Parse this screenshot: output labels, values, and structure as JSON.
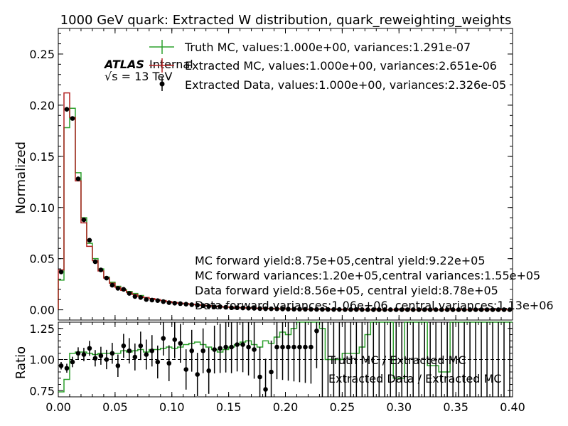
{
  "chart_data": {
    "type": "step-histogram",
    "title": "1000 GeV quark: Extracted W distribution, quark_reweighting_weights",
    "atlas_label": "ATLAS",
    "internal_label": "Internal",
    "energy_label": "√s =  13 TeV",
    "xlabel": "",
    "ylabel_main": "Normalized",
    "ylabel_ratio": "Ratio",
    "xlim": [
      0.0,
      0.4
    ],
    "ylim_main": [
      -0.01,
      0.275
    ],
    "ylim_ratio": [
      0.7,
      1.3
    ],
    "x_ticks": [
      "0.00",
      "0.05",
      "0.10",
      "0.15",
      "0.20",
      "0.25",
      "0.30",
      "0.35",
      "0.40"
    ],
    "y_ticks_main": [
      "0.00",
      "0.05",
      "0.10",
      "0.15",
      "0.20",
      "0.25"
    ],
    "y_ticks_ratio": [
      "0.75",
      "1.00",
      "1.25"
    ],
    "legend": {
      "truth_mc": "Truth MC, values:1.000e+00, variances:1.291e-07",
      "extracted_mc": "Extracted MC, values:1.000e+00, variances:2.651e-06",
      "extracted_data": "Extracted Data, values:1.000e+00, variances:2.326e-05"
    },
    "annotations": [
      "MC forward yield:8.75e+05,central yield:9.22e+05",
      "MC forward variances:1.20e+05,central variances:1.55e+05",
      "Data forward yield:8.56e+05, central yield:8.78e+05",
      "Data forward variances:1.06e+06, central variances:1.13e+06"
    ],
    "ratio_legend": {
      "truth": "Truth MC / Extracted MC",
      "data": "Extracted Data / Extracted MC"
    },
    "bin_edges_start": 0.0,
    "bin_width": 0.005,
    "series": [
      {
        "name": "Truth MC",
        "color": "#2ca02c",
        "values": [
          0.029,
          0.178,
          0.197,
          0.134,
          0.09,
          0.065,
          0.05,
          0.04,
          0.032,
          0.027,
          0.023,
          0.02,
          0.018,
          0.016,
          0.014,
          0.012,
          0.011,
          0.01,
          0.009,
          0.008,
          0.007,
          0.0065,
          0.006,
          0.0055,
          0.005,
          0.0045,
          0.004,
          0.0035,
          0.003,
          0.0028,
          0.0025,
          0.0022,
          0.002,
          0.0018,
          0.0016,
          0.0014,
          0.0012,
          0.0011,
          0.001,
          0.0009,
          0.0008,
          0.0007,
          0.0006,
          0.0005,
          0.0005,
          0.0004,
          0.0004,
          0.0003,
          0.0003,
          0.0003,
          0.0002,
          0.0002,
          0.0002,
          0.0002,
          0.0001,
          0.0001,
          0.0001,
          0.0001,
          0.0001,
          0.0001,
          0.0001,
          0.0001,
          0.0001,
          0.0001,
          0.0001,
          0.0001,
          0.0001,
          0.0001,
          0.0001,
          0.0001,
          0.0001,
          0.0001,
          0.0001,
          0.0001,
          0.0001,
          0.0001,
          0.0001,
          0.0001,
          0.0001,
          0.0001
        ]
      },
      {
        "name": "Extracted MC",
        "color": "#b22222",
        "values": [
          0.039,
          0.212,
          0.188,
          0.126,
          0.085,
          0.062,
          0.048,
          0.038,
          0.031,
          0.026,
          0.022,
          0.019,
          0.017,
          0.015,
          0.013,
          0.012,
          0.011,
          0.01,
          0.009,
          0.008,
          0.007,
          0.0065,
          0.006,
          0.0055,
          0.005,
          0.0045,
          0.004,
          0.0035,
          0.003,
          0.0028,
          0.0025,
          0.0022,
          0.002,
          0.0018,
          0.0016,
          0.0014,
          0.0012,
          0.0011,
          0.001,
          0.0009,
          0.0008,
          0.0007,
          0.0006,
          0.0005,
          0.0005,
          0.0004,
          0.0004,
          0.0003,
          0.0003,
          0.0003,
          0.0002,
          0.0002,
          0.0002,
          0.0002,
          0.0001,
          0.0001,
          0.0001,
          0.0001,
          0.0001,
          0.0001,
          0.0001,
          0.0001,
          0.0001,
          0.0001,
          0.0001,
          0.0001,
          0.0001,
          0.0001,
          0.0001,
          0.0001,
          0.0001,
          0.0001,
          0.0001,
          0.0001,
          0.0001,
          0.0001,
          0.0001,
          0.0001,
          0.0001,
          0.0001
        ]
      },
      {
        "name": "Extracted Data",
        "color": "#000000",
        "values": [
          0.037,
          0.196,
          0.187,
          0.128,
          0.088,
          0.068,
          0.047,
          0.039,
          0.031,
          0.024,
          0.021,
          0.02,
          0.016,
          0.013,
          0.012,
          0.01,
          0.0095,
          0.009,
          0.008,
          0.007,
          0.0065,
          0.006,
          0.0055,
          0.005,
          0.0045,
          0.004,
          0.0035,
          0.003,
          0.003,
          0.0025,
          0.002,
          0.002,
          0.0018,
          0.0016,
          0.0014,
          0.0012,
          0.001,
          0.001,
          0.0009,
          0.0008,
          0.0007,
          0.0006,
          0.0006,
          0.0005,
          0.0005,
          0.0004,
          0.0004,
          0.0003,
          0.0003,
          0.0003,
          0.0002,
          0.0002,
          0.0002,
          0.0002,
          0.0001,
          0.0001,
          0.0001,
          0.0001,
          0.0001,
          0.0001,
          0.0001,
          0.0001,
          0.0001,
          0.0001,
          0.0001,
          0.0001,
          0.0001,
          0.0001,
          0.0001,
          0.0001,
          0.0001,
          0.0001,
          0.0001,
          0.0001,
          0.0001,
          0.0001,
          0.0001,
          0.0001,
          0.0001,
          0.0001
        ]
      }
    ],
    "ratio_series": [
      {
        "name": "Truth MC / Extracted MC",
        "color": "#2ca02c",
        "values": [
          0.74,
          0.84,
          1.05,
          1.06,
          1.06,
          1.05,
          1.04,
          1.05,
          1.05,
          1.05,
          1.05,
          1.07,
          1.06,
          1.07,
          1.08,
          1.06,
          1.08,
          1.08,
          1.09,
          1.1,
          1.09,
          1.1,
          1.12,
          1.13,
          1.14,
          1.12,
          1.1,
          1.08,
          1.06,
          1.08,
          1.1,
          1.12,
          1.14,
          1.15,
          1.12,
          1.1,
          1.15,
          1.13,
          1.18,
          1.22,
          1.2,
          1.25,
          1.3,
          1.3,
          1.3,
          1.3,
          1.25,
          1.0,
          1.0,
          1.0,
          1.05,
          1.05,
          1.05,
          1.1,
          1.2,
          1.3,
          1.3,
          1.3,
          1.3,
          0.85,
          0.85,
          1.3,
          1.3,
          1.3,
          1.3,
          0.95,
          0.95,
          0.9,
          0.9,
          1.3,
          1.3,
          1.3,
          1.3,
          1.3,
          1.3,
          1.3,
          1.3,
          1.3,
          1.3,
          1.3
        ]
      },
      {
        "name": "Extracted Data / Extracted MC",
        "color": "#000000",
        "values": [
          0.95,
          0.93,
          0.98,
          1.05,
          1.04,
          1.09,
          1.01,
          1.03,
          1.0,
          1.05,
          0.95,
          1.11,
          1.07,
          1.02,
          1.11,
          1.04,
          1.07,
          0.98,
          1.17,
          0.97,
          1.16,
          1.13,
          0.92,
          1.07,
          0.88,
          1.07,
          0.91,
          1.08,
          1.09,
          1.1,
          1.1,
          1.12,
          1.12,
          1.1,
          1.08,
          0.86,
          0.76,
          0.9,
          1.1,
          1.1,
          1.1,
          1.1,
          1.1,
          1.1,
          1.1,
          1.23,
          1.0,
          1.0,
          1.0,
          1.0,
          1.0,
          1.0,
          1.0,
          1.0,
          1.0,
          1.0,
          1.0,
          1.0,
          1.0,
          1.0,
          1.0,
          1.0,
          1.0,
          1.0,
          1.0,
          1.0,
          1.0,
          1.0,
          1.0,
          1.0,
          1.0,
          1.0,
          1.0,
          1.0,
          1.0,
          1.0,
          1.0,
          1.0,
          1.0,
          1.0
        ]
      }
    ]
  }
}
